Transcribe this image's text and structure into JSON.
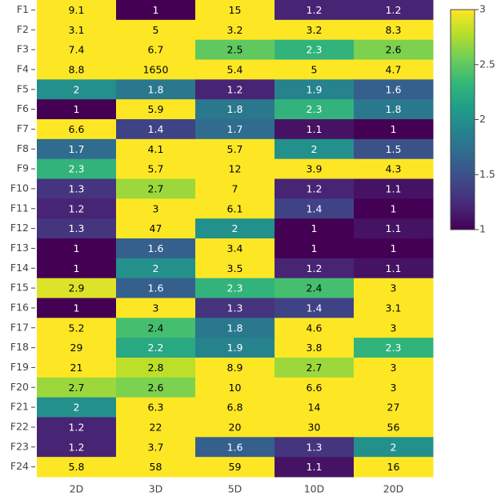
{
  "chart_data": {
    "type": "heatmap",
    "x": [
      "2D",
      "3D",
      "5D",
      "10D",
      "20D"
    ],
    "y": [
      "F1",
      "F2",
      "F3",
      "F4",
      "F5",
      "F6",
      "F7",
      "F8",
      "F9",
      "F10",
      "F11",
      "F12",
      "F13",
      "F14",
      "F15",
      "F16",
      "F17",
      "F18",
      "F19",
      "F20",
      "F21",
      "F22",
      "F23",
      "F24"
    ],
    "z": [
      [
        9.1,
        1,
        15,
        1.2,
        1.2
      ],
      [
        3.1,
        5,
        3.2,
        3.2,
        8.3
      ],
      [
        7.4,
        6.7,
        2.5,
        2.3,
        2.6
      ],
      [
        8.8,
        1650,
        5.4,
        5,
        4.7
      ],
      [
        2,
        1.8,
        1.2,
        1.9,
        1.6
      ],
      [
        1,
        5.9,
        1.8,
        2.3,
        1.8
      ],
      [
        6.6,
        1.4,
        1.7,
        1.1,
        1
      ],
      [
        1.7,
        4.1,
        5.7,
        2,
        1.5
      ],
      [
        2.3,
        5.7,
        12,
        3.9,
        4.3
      ],
      [
        1.3,
        2.7,
        7,
        1.2,
        1.1
      ],
      [
        1.2,
        3,
        6.1,
        1.4,
        1
      ],
      [
        1.3,
        47,
        2,
        1,
        1.1
      ],
      [
        1,
        1.6,
        3.4,
        1,
        1
      ],
      [
        1,
        2,
        3.5,
        1.2,
        1.1
      ],
      [
        2.9,
        1.6,
        2.3,
        2.4,
        3
      ],
      [
        1,
        3,
        1.3,
        1.4,
        3.1
      ],
      [
        5.2,
        2.4,
        1.8,
        4.6,
        3
      ],
      [
        29,
        2.2,
        1.9,
        3.8,
        2.3
      ],
      [
        21,
        2.8,
        8.9,
        2.7,
        3
      ],
      [
        2.7,
        2.6,
        10,
        6.6,
        3
      ],
      [
        2,
        6.3,
        6.8,
        14,
        27
      ],
      [
        1.2,
        22,
        20,
        30,
        56
      ],
      [
        1.2,
        3.7,
        1.6,
        1.3,
        2
      ],
      [
        5.8,
        58,
        59,
        1.1,
        16
      ]
    ],
    "colorscale": "Viridis",
    "zlim": [
      1,
      3
    ],
    "colorbar_ticks": [
      1,
      1.5,
      2,
      2.5,
      3
    ]
  }
}
